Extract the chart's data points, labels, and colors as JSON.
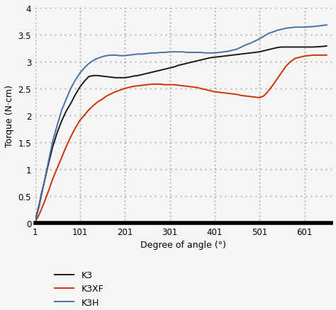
{
  "title": "",
  "xlabel": "Degree of angle (°)",
  "ylabel": "Torque (N·cm)",
  "xlim": [
    1,
    660
  ],
  "ylim": [
    0,
    4.0
  ],
  "xticks": [
    1,
    101,
    201,
    301,
    401,
    501,
    601
  ],
  "yticks": [
    0,
    0.5,
    1.0,
    1.5,
    2.0,
    2.5,
    3.0,
    3.5,
    4.0
  ],
  "legend_labels": [
    "K3",
    "K3XF",
    "K3H"
  ],
  "legend_colors": [
    "#1a1a1a",
    "#cc3300",
    "#4a6fa5"
  ],
  "background_color": "#f5f5f5",
  "grid_color": "#aaaaaa",
  "K3_x": [
    1,
    5,
    10,
    15,
    20,
    25,
    30,
    35,
    40,
    50,
    60,
    70,
    80,
    90,
    100,
    110,
    120,
    130,
    140,
    150,
    160,
    170,
    180,
    190,
    200,
    210,
    220,
    230,
    240,
    250,
    260,
    270,
    280,
    290,
    300,
    310,
    320,
    330,
    340,
    350,
    360,
    370,
    380,
    390,
    400,
    410,
    420,
    430,
    440,
    450,
    460,
    470,
    480,
    490,
    500,
    510,
    520,
    530,
    540,
    550,
    560,
    570,
    580,
    590,
    600,
    620,
    640,
    650
  ],
  "K3_y": [
    0.05,
    0.18,
    0.35,
    0.55,
    0.72,
    0.9,
    1.08,
    1.25,
    1.42,
    1.68,
    1.9,
    2.08,
    2.22,
    2.38,
    2.52,
    2.63,
    2.72,
    2.74,
    2.74,
    2.73,
    2.72,
    2.71,
    2.7,
    2.7,
    2.7,
    2.71,
    2.73,
    2.74,
    2.76,
    2.78,
    2.8,
    2.82,
    2.84,
    2.86,
    2.88,
    2.9,
    2.93,
    2.95,
    2.97,
    2.99,
    3.01,
    3.03,
    3.05,
    3.07,
    3.08,
    3.09,
    3.1,
    3.11,
    3.12,
    3.13,
    3.14,
    3.15,
    3.16,
    3.17,
    3.18,
    3.2,
    3.22,
    3.24,
    3.26,
    3.27,
    3.27,
    3.27,
    3.27,
    3.27,
    3.27,
    3.27,
    3.28,
    3.29
  ],
  "K3XF_x": [
    1,
    5,
    10,
    15,
    20,
    25,
    30,
    35,
    40,
    50,
    60,
    70,
    80,
    90,
    100,
    110,
    120,
    130,
    140,
    150,
    160,
    170,
    180,
    190,
    200,
    210,
    220,
    230,
    240,
    250,
    260,
    270,
    280,
    290,
    300,
    310,
    320,
    330,
    340,
    350,
    360,
    370,
    380,
    390,
    400,
    410,
    420,
    430,
    440,
    450,
    460,
    470,
    480,
    490,
    500,
    510,
    520,
    530,
    540,
    550,
    560,
    570,
    580,
    590,
    600,
    620,
    640,
    650
  ],
  "K3XF_y": [
    0.02,
    0.08,
    0.16,
    0.26,
    0.36,
    0.47,
    0.58,
    0.7,
    0.82,
    1.02,
    1.22,
    1.42,
    1.6,
    1.76,
    1.9,
    2.0,
    2.1,
    2.18,
    2.25,
    2.3,
    2.36,
    2.4,
    2.44,
    2.47,
    2.5,
    2.52,
    2.54,
    2.55,
    2.56,
    2.57,
    2.58,
    2.58,
    2.58,
    2.57,
    2.57,
    2.57,
    2.56,
    2.55,
    2.54,
    2.53,
    2.52,
    2.5,
    2.48,
    2.46,
    2.44,
    2.43,
    2.42,
    2.41,
    2.4,
    2.39,
    2.37,
    2.36,
    2.35,
    2.34,
    2.33,
    2.36,
    2.45,
    2.56,
    2.68,
    2.8,
    2.92,
    3.0,
    3.06,
    3.08,
    3.1,
    3.12,
    3.12,
    3.12
  ],
  "K3H_x": [
    1,
    5,
    10,
    15,
    20,
    25,
    30,
    35,
    40,
    50,
    60,
    70,
    80,
    90,
    100,
    110,
    120,
    130,
    140,
    150,
    160,
    170,
    180,
    190,
    200,
    210,
    220,
    230,
    240,
    250,
    260,
    270,
    280,
    290,
    300,
    310,
    320,
    330,
    340,
    350,
    360,
    370,
    380,
    390,
    400,
    410,
    420,
    430,
    440,
    450,
    460,
    470,
    480,
    490,
    500,
    510,
    520,
    530,
    540,
    550,
    560,
    570,
    580,
    590,
    600,
    620,
    640,
    650
  ],
  "K3H_y": [
    0.02,
    0.15,
    0.32,
    0.52,
    0.72,
    0.92,
    1.12,
    1.32,
    1.52,
    1.82,
    2.1,
    2.3,
    2.5,
    2.65,
    2.78,
    2.88,
    2.96,
    3.02,
    3.06,
    3.09,
    3.11,
    3.12,
    3.12,
    3.11,
    3.11,
    3.12,
    3.13,
    3.14,
    3.14,
    3.15,
    3.16,
    3.16,
    3.17,
    3.17,
    3.18,
    3.18,
    3.18,
    3.18,
    3.17,
    3.17,
    3.17,
    3.17,
    3.16,
    3.16,
    3.16,
    3.17,
    3.18,
    3.19,
    3.21,
    3.23,
    3.27,
    3.31,
    3.34,
    3.38,
    3.42,
    3.47,
    3.52,
    3.55,
    3.58,
    3.6,
    3.62,
    3.63,
    3.64,
    3.64,
    3.64,
    3.65,
    3.67,
    3.68
  ]
}
